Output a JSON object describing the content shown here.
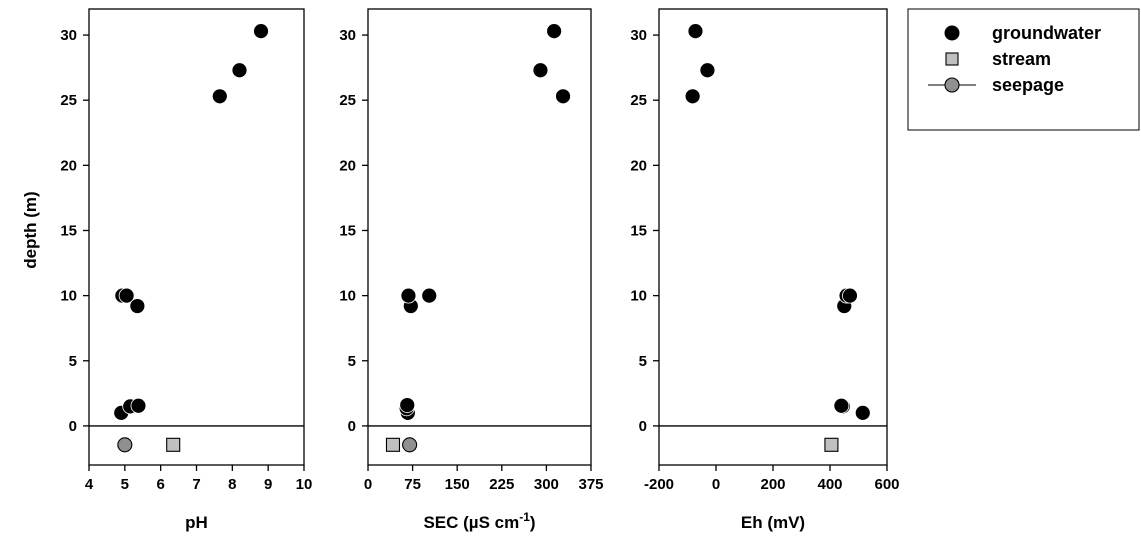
{
  "chart_data": {
    "type": "scatter",
    "shared_ylabel": "depth (m)",
    "y_axis": {
      "ylim": [
        32,
        -3
      ],
      "ticks": [
        0,
        5,
        10,
        15,
        20,
        25,
        30
      ],
      "inverted": true
    },
    "legend": {
      "placement": "top-right",
      "entries": [
        {
          "label": "groundwater",
          "marker": "filled-circle",
          "color": "#000000"
        },
        {
          "label": "stream",
          "marker": "square",
          "color": "#c0c0c0"
        },
        {
          "label": "seepage",
          "marker": "circle-with-line",
          "color": "#909090"
        }
      ]
    },
    "panels": [
      {
        "xlabel": "pH",
        "xlim": [
          4,
          10
        ],
        "xticks": [
          4,
          5,
          6,
          7,
          8,
          9,
          10
        ],
        "series": [
          {
            "name": "groundwater",
            "points": [
              [
                4.9,
                1.0
              ],
              [
                5.15,
                1.5
              ],
              [
                5.38,
                1.55
              ],
              [
                4.93,
                10.0
              ],
              [
                5.05,
                10.0
              ],
              [
                5.35,
                9.2
              ],
              [
                7.65,
                25.3
              ],
              [
                8.2,
                27.3
              ],
              [
                8.8,
                30.3
              ]
            ]
          },
          {
            "name": "stream",
            "points": [
              [
                6.35,
                -1.45
              ]
            ]
          },
          {
            "name": "seepage",
            "points": [
              [
                5.0,
                -1.45
              ]
            ]
          }
        ]
      },
      {
        "xlabel": "SEC (µS cm",
        "xlabel_sup": "-1",
        "xlabel_tail": ")",
        "xlim": [
          0,
          375
        ],
        "xticks": [
          0,
          75,
          150,
          225,
          300,
          375
        ],
        "series": [
          {
            "name": "groundwater",
            "points": [
              [
                67,
                1.0
              ],
              [
                65,
                1.35
              ],
              [
                66,
                1.6
              ],
              [
                72,
                9.2
              ],
              [
                68,
                10.0
              ],
              [
                103,
                10.0
              ],
              [
                328,
                25.3
              ],
              [
                290,
                27.3
              ],
              [
                313,
                30.3
              ]
            ]
          },
          {
            "name": "stream",
            "points": [
              [
                42,
                -1.45
              ]
            ]
          },
          {
            "name": "seepage",
            "points": [
              [
                70,
                -1.45
              ]
            ]
          }
        ]
      },
      {
        "xlabel": "Eh (mV)",
        "xlim": [
          -200,
          600
        ],
        "xticks": [
          -200,
          0,
          200,
          400,
          600
        ],
        "series": [
          {
            "name": "groundwater",
            "points": [
              [
                515,
                1.0
              ],
              [
                445,
                1.5
              ],
              [
                440,
                1.55
              ],
              [
                450,
                9.2
              ],
              [
                458,
                10.0
              ],
              [
                470,
                10.0
              ],
              [
                -82,
                25.3
              ],
              [
                -30,
                27.3
              ],
              [
                -72,
                30.3
              ]
            ]
          },
          {
            "name": "stream",
            "points": [
              [
                405,
                -1.45
              ]
            ]
          }
        ]
      }
    ]
  }
}
